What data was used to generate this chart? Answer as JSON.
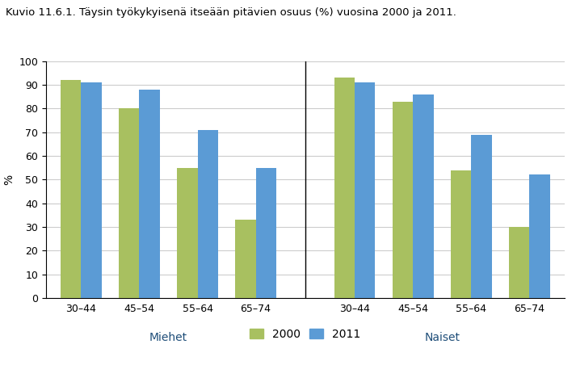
{
  "title": "Kuvio 11.6.1. Täysin työkykyisenä itseään pitävien osuus (%) vuosina 2000 ja 2011.",
  "ylabel": "%",
  "groups": [
    "30–44",
    "45–54",
    "55–64",
    "65–74",
    "30–44",
    "45–54",
    "55–64",
    "65–74"
  ],
  "group_labels_bottom": [
    "Miehet",
    "Naiset"
  ],
  "values_2000": [
    92,
    80,
    55,
    33,
    93,
    83,
    54,
    30
  ],
  "values_2011": [
    91,
    88,
    71,
    55,
    91,
    86,
    69,
    52
  ],
  "color_2000": "#a8c060",
  "color_2011": "#5b9bd5",
  "ylim": [
    0,
    100
  ],
  "yticks": [
    0,
    10,
    20,
    30,
    40,
    50,
    60,
    70,
    80,
    90,
    100
  ],
  "legend_labels": [
    "2000",
    "2011"
  ],
  "bar_width": 0.35,
  "background_color": "#ffffff",
  "grid_color": "#cccccc"
}
